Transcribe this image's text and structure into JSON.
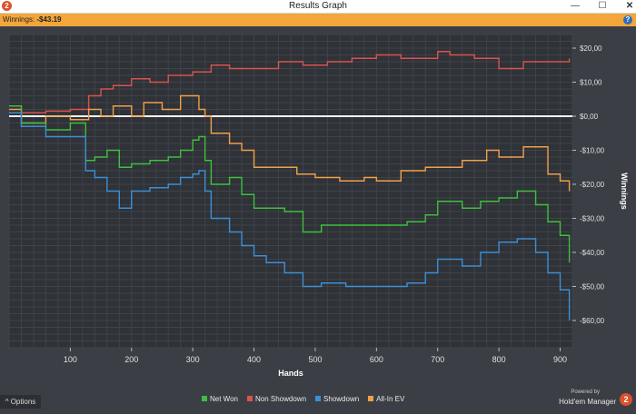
{
  "window": {
    "title": "Results Graph",
    "app_icon": "2",
    "controls": {
      "minimize": "—",
      "maximize": "☐",
      "close": "✕"
    }
  },
  "header": {
    "winnings_label": "Winnings:",
    "winnings_value": "-$43.19",
    "help_icon": "?"
  },
  "chart_data": {
    "type": "line",
    "xlabel": "Hands",
    "ylabel": "Winnings",
    "xlim": [
      0,
      920
    ],
    "ylim": [
      -68,
      24
    ],
    "x_ticks": [
      100,
      200,
      300,
      400,
      500,
      600,
      700,
      800,
      900
    ],
    "y_ticks": [
      20,
      10,
      0,
      -10,
      -20,
      -30,
      -40,
      -50,
      -60
    ],
    "y_tick_labels": [
      "$20,00",
      "$10,00",
      "$0,00",
      "-$10,00",
      "-$20,00",
      "-$30,00",
      "-$40,00",
      "-$50,00",
      "-$60,00"
    ],
    "zero_line": true,
    "grid": true,
    "series": [
      {
        "name": "Non Showdown",
        "color": "#d9534f",
        "x": [
          0,
          20,
          60,
          100,
          130,
          150,
          170,
          200,
          230,
          260,
          300,
          330,
          360,
          400,
          440,
          480,
          520,
          560,
          600,
          640,
          680,
          700,
          720,
          760,
          800,
          840,
          880,
          915
        ],
        "y": [
          3,
          1,
          1.5,
          2,
          6,
          8,
          9,
          11,
          10,
          12,
          13,
          15,
          14,
          14,
          16,
          15,
          16,
          17,
          18,
          17,
          17,
          19,
          18,
          17,
          14,
          16,
          16,
          17
        ]
      },
      {
        "name": "All-In EV",
        "color": "#f0a04b",
        "x": [
          0,
          20,
          60,
          100,
          130,
          150,
          170,
          200,
          220,
          250,
          280,
          300,
          310,
          320,
          330,
          360,
          380,
          400,
          430,
          470,
          500,
          540,
          580,
          600,
          640,
          680,
          700,
          740,
          780,
          800,
          840,
          880,
          900,
          915
        ],
        "y": [
          2,
          -2,
          0,
          -1,
          2,
          0,
          3,
          0,
          4,
          2,
          6,
          6,
          2,
          0,
          -5,
          -8,
          -10,
          -15,
          -15,
          -17,
          -18,
          -19,
          -18,
          -19,
          -16,
          -15,
          -15,
          -13,
          -10,
          -12,
          -9,
          -17,
          -19,
          -22
        ]
      },
      {
        "name": "Net Won",
        "color": "#3fbf3f",
        "x": [
          0,
          20,
          60,
          100,
          125,
          140,
          160,
          180,
          200,
          230,
          260,
          280,
          300,
          310,
          320,
          330,
          360,
          380,
          400,
          420,
          450,
          480,
          510,
          550,
          600,
          650,
          680,
          700,
          740,
          770,
          800,
          830,
          860,
          880,
          900,
          915
        ],
        "y": [
          3,
          -2,
          -4,
          -2,
          -13,
          -12,
          -10,
          -15,
          -14,
          -13,
          -12,
          -10,
          -7,
          -6,
          -13,
          -20,
          -18,
          -23,
          -27,
          -27,
          -28,
          -34,
          -32,
          -32,
          -32,
          -31,
          -29,
          -25,
          -27,
          -25,
          -24,
          -22,
          -26,
          -31,
          -35,
          -43
        ]
      },
      {
        "name": "Showdown",
        "color": "#3c8fd6",
        "x": [
          0,
          20,
          60,
          100,
          125,
          140,
          160,
          180,
          200,
          230,
          260,
          280,
          300,
          310,
          320,
          330,
          360,
          380,
          400,
          420,
          450,
          480,
          510,
          550,
          600,
          650,
          680,
          700,
          740,
          770,
          800,
          830,
          860,
          880,
          900,
          915
        ],
        "y": [
          1,
          -3,
          -6,
          -6,
          -16,
          -18,
          -22,
          -27,
          -22,
          -21,
          -20,
          -18,
          -17,
          -16,
          -22,
          -30,
          -34,
          -38,
          -41,
          -43,
          -46,
          -50,
          -49,
          -50,
          -50,
          -49,
          -46,
          -42,
          -44,
          -40,
          -37,
          -36,
          -40,
          -46,
          -51,
          -60
        ]
      }
    ]
  },
  "footer": {
    "options_label": "Options",
    "options_icon": "^",
    "powered_by": "Powered by",
    "brand": "Hold'em Manager",
    "brand_badge": "2"
  }
}
